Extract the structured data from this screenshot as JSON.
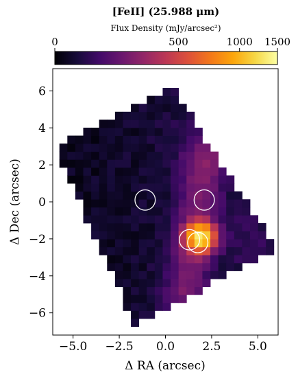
{
  "chart_data": {
    "type": "heatmap",
    "title": "[FeII] (25.988 μm)",
    "colorbar": {
      "label": "Flux Density (mJy/arcsec²)",
      "ticks": [
        0,
        500,
        1000,
        1500
      ],
      "tick_labels": [
        "0",
        "500",
        "1000",
        "1500"
      ],
      "scale": "asinh",
      "colormap": "inferno",
      "location": "top"
    },
    "xlabel": "Δ RA (arcsec)",
    "ylabel": "Δ Dec (arcsec)",
    "xlim": [
      -6.1,
      6.1
    ],
    "ylim": [
      -7.2,
      7.2
    ],
    "xticks": [
      -5.0,
      -2.5,
      0.0,
      2.5,
      5.0
    ],
    "xtick_labels": [
      "−5.0",
      "−2.5",
      "0.0",
      "2.5",
      "5.0"
    ],
    "yticks": [
      6,
      4,
      2,
      0,
      -2,
      -4,
      -6
    ],
    "ytick_labels": [
      "6",
      "4",
      "2",
      "0",
      "−2",
      "−4",
      "−6"
    ],
    "grid": false,
    "pixel_size_arcsec": 0.43,
    "footprint_corners": [
      [
        -6.0,
        2.9
      ],
      [
        0.3,
        6.3
      ],
      [
        6.1,
        -2.6
      ],
      [
        -1.7,
        -6.6
      ]
    ],
    "circles": [
      {
        "x": -1.1,
        "y": 0.1,
        "r": 0.55
      },
      {
        "x": 2.1,
        "y": 0.1,
        "r": 0.55
      },
      {
        "x": 1.3,
        "y": -2.05,
        "r": 0.55
      },
      {
        "x": 1.75,
        "y": -2.2,
        "r": 0.55
      }
    ],
    "emission_peak": {
      "x": 1.9,
      "y": -1.9,
      "value": 1100
    },
    "emission_ridge": {
      "start": [
        1.9,
        0.9
      ],
      "end": [
        1.2,
        -4.2
      ]
    }
  }
}
